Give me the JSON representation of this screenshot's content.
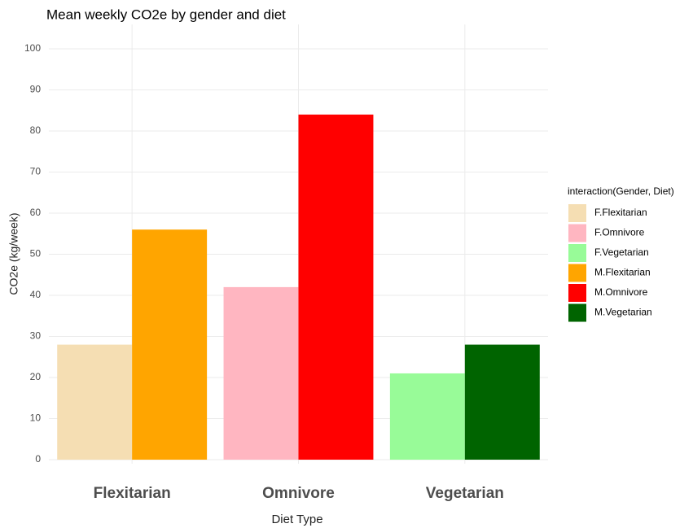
{
  "chart_data": {
    "type": "bar",
    "title": "Mean weekly CO2e by gender and diet",
    "x_label": "Diet Type",
    "y_label": "CO2e (kg/week)",
    "legend_title": "interaction(Gender, Diet)",
    "legend_position": "right",
    "grid": true,
    "categories": [
      "Flexitarian",
      "Omnivore",
      "Vegetarian"
    ],
    "series": [
      {
        "name": "F.Flexitarian",
        "color": "#f5deb3",
        "values": [
          28,
          null,
          null
        ]
      },
      {
        "name": "F.Omnivore",
        "color": "#ffb6c1",
        "values": [
          null,
          42,
          null
        ]
      },
      {
        "name": "F.Vegetarian",
        "color": "#98fb98",
        "values": [
          null,
          null,
          21
        ]
      },
      {
        "name": "M.Flexitarian",
        "color": "#ffa500",
        "values": [
          56,
          null,
          null
        ]
      },
      {
        "name": "M.Omnivore",
        "color": "#ff0000",
        "values": [
          null,
          84,
          null
        ]
      },
      {
        "name": "M.Vegetarian",
        "color": "#006400",
        "values": [
          null,
          null,
          28
        ]
      }
    ],
    "ylim": [
      0,
      100
    ],
    "yticks": [
      0,
      10,
      20,
      30,
      40,
      50,
      60,
      70,
      80,
      90,
      100
    ]
  }
}
